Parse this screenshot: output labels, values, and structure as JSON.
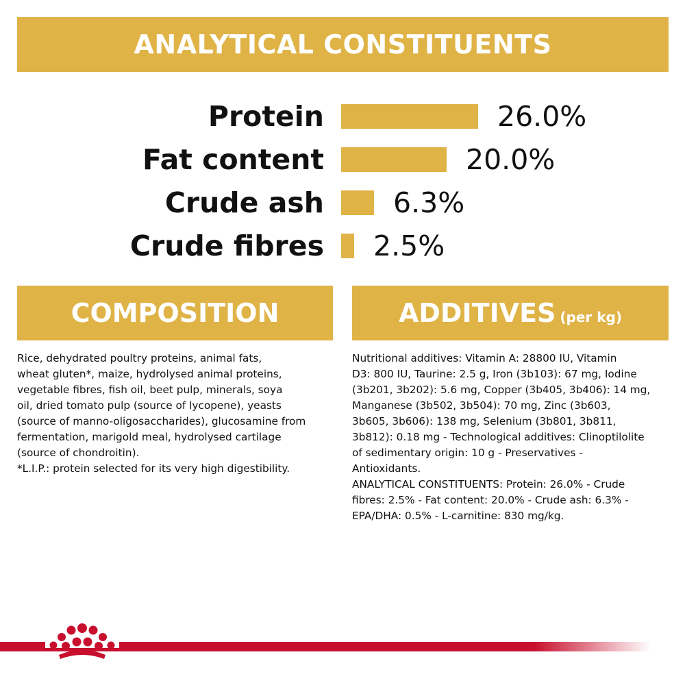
{
  "headers": {
    "analytical": "ANALYTICAL CONSTITUENTS",
    "composition": "COMPOSITION",
    "additives": "ADDITIVES",
    "additives_unit": "(per kg)"
  },
  "chart_data": {
    "type": "bar",
    "orientation": "horizontal",
    "categories": [
      "Protein",
      "Fat content",
      "Crude ash",
      "Crude fibres"
    ],
    "values": [
      26.0,
      20.0,
      6.3,
      2.5
    ],
    "value_labels": [
      "26.0%",
      "20.0%",
      "6.3%",
      "2.5%"
    ],
    "title": "ANALYTICAL CONSTITUENTS",
    "xlabel": "",
    "ylabel": "",
    "grid": false,
    "bar_color": "#e0b347"
  },
  "composition": {
    "lines": [
      "Rice, dehydrated poultry proteins, animal fats,",
      "wheat gluten*, maize, hydrolysed animal proteins,",
      "vegetable fibres, fish oil, beet pulp, minerals, soya",
      "oil, dried tomato pulp (source of lycopene), yeasts",
      "(source of manno-oligosaccharides), glucosamine from",
      "fermentation, marigold meal, hydrolysed cartilage",
      "(source of chondroitin).",
      "*L.I.P.: protein selected for its very high digestibility."
    ]
  },
  "additives": {
    "lines": [
      "Nutritional additives: Vitamin A: 28800 IU, Vitamin",
      "D3: 800 IU, Taurine: 2.5 g, Iron (3b103): 67 mg, Iodine",
      "(3b201, 3b202): 5.6 mg, Copper (3b405, 3b406): 14 mg,",
      "Manganese (3b502, 3b504): 70 mg, Zinc (3b603,",
      "3b605, 3b606): 138 mg, Selenium (3b801, 3b811,",
      "3b812): 0.18 mg - Technological additives: Clinoptilolite",
      "of sedimentary origin: 10 g - Preservatives -",
      "Antioxidants.",
      "ANALYTICAL CONSTITUENTS: Protein: 26.0% - Crude",
      "fibres: 2.5% - Fat content: 20.0% - Crude ash: 6.3% -",
      "EPA/DHA: 0.5% - L-carnitine: 830 mg/kg."
    ]
  },
  "colors": {
    "accent": "#e0b347",
    "brand_red": "#c8102e"
  },
  "logo_icon": "crown-logo-icon"
}
